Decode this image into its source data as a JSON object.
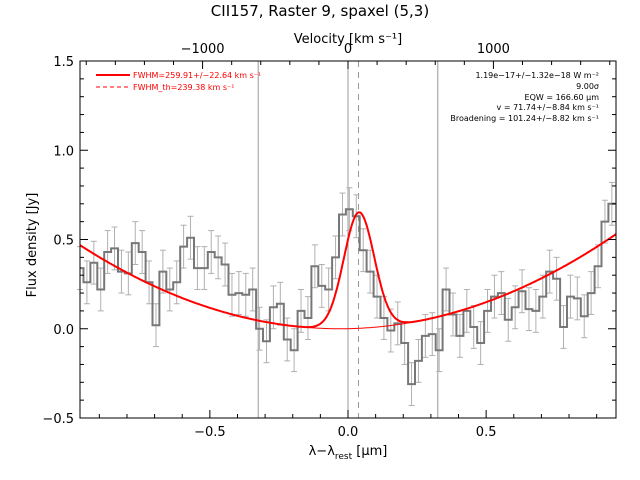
{
  "chart_data": {
    "type": "line",
    "title": "CII157, Raster 9, spaxel (5,3)",
    "xlabel": "λ−λ",
    "xlabel_subscript": "rest",
    "xlabel_unit": " [μm]",
    "ylabel": "Flux density [Jy]",
    "top_axis_label": "Velocity [km s⁻¹]",
    "xlim": [
      -0.97,
      0.97
    ],
    "ylim": [
      -0.5,
      1.5
    ],
    "grid": false,
    "x_ticks": [
      -0.5,
      0.0,
      0.5
    ],
    "x_tick_labels": [
      "−0.5",
      "0.0",
      "0.5"
    ],
    "y_ticks": [
      -0.5,
      0.0,
      0.5,
      1.0,
      1.5
    ],
    "y_tick_labels": [
      "−0.5",
      "0.0",
      "0.5",
      "1.0",
      "1.5"
    ],
    "top_ticks_kms": [
      -1000,
      0,
      1000
    ],
    "top_tick_labels": [
      "−1000",
      "0",
      "1000"
    ],
    "kms_per_micron": 1900,
    "vertical_lines": [
      -0.325,
      0.0,
      0.325
    ],
    "dashed_vertical_line": 0.038,
    "data_spectrum": {
      "x": [
        -0.97,
        -0.945,
        -0.92,
        -0.895,
        -0.87,
        -0.845,
        -0.82,
        -0.795,
        -0.77,
        -0.745,
        -0.72,
        -0.695,
        -0.67,
        -0.645,
        -0.62,
        -0.595,
        -0.57,
        -0.545,
        -0.52,
        -0.495,
        -0.47,
        -0.445,
        -0.42,
        -0.395,
        -0.37,
        -0.345,
        -0.32,
        -0.295,
        -0.27,
        -0.245,
        -0.22,
        -0.195,
        -0.17,
        -0.145,
        -0.12,
        -0.095,
        -0.07,
        -0.045,
        -0.02,
        0.005,
        0.03,
        0.055,
        0.08,
        0.105,
        0.13,
        0.155,
        0.18,
        0.205,
        0.23,
        0.255,
        0.28,
        0.305,
        0.33,
        0.355,
        0.38,
        0.405,
        0.43,
        0.455,
        0.48,
        0.505,
        0.53,
        0.555,
        0.58,
        0.605,
        0.63,
        0.655,
        0.68,
        0.705,
        0.73,
        0.755,
        0.78,
        0.805,
        0.83,
        0.855,
        0.88,
        0.905,
        0.93,
        0.955
      ],
      "y": [
        0.34,
        0.26,
        0.37,
        0.22,
        0.43,
        0.45,
        0.32,
        0.31,
        0.48,
        0.43,
        0.26,
        0.02,
        0.32,
        0.22,
        0.26,
        0.46,
        0.51,
        0.34,
        0.34,
        0.43,
        0.4,
        0.36,
        0.19,
        0.2,
        0.19,
        0.22,
        0.0,
        -0.07,
        0.12,
        0.14,
        -0.06,
        -0.12,
        0.1,
        0.06,
        0.35,
        0.24,
        0.22,
        0.4,
        0.64,
        0.67,
        0.63,
        0.44,
        0.32,
        0.18,
        0.06,
        -0.01,
        0.03,
        -0.08,
        -0.31,
        -0.18,
        -0.04,
        -0.03,
        -0.12,
        0.22,
        0.08,
        -0.04,
        0.1,
        0.01,
        -0.08,
        0.1,
        0.18,
        0.2,
        0.05,
        0.12,
        0.21,
        0.11,
        0.1,
        0.18,
        0.32,
        0.28,
        0.01,
        0.18,
        0.17,
        0.07,
        0.2,
        0.35,
        0.6,
        0.7
      ],
      "error": 0.12
    },
    "fit": {
      "baseline": {
        "center": -0.03,
        "a": 0.53
      },
      "gaussian": {
        "amplitude": 0.65,
        "center": 0.04,
        "sigma": 0.055
      }
    },
    "series": [
      {
        "name": "FWHM=259.91+/−22.64 km s⁻¹",
        "style": "solid",
        "color": "#ff0000"
      },
      {
        "name": "FWHM_th=239.38 km s⁻¹",
        "style": "dashed",
        "color": "#ff0000"
      }
    ],
    "legend_position": "top-left",
    "annotations": [
      "1.19e−17+/−1.32e−18 W m⁻²",
      "9.00σ",
      "EQW = 166.60 μm",
      "v = 71.74+/−8.84 km s⁻¹",
      "Broadening = 101.24+/−8.82 km s⁻¹"
    ],
    "colors": {
      "data": "#777777",
      "errorbar": "#b0b0b0",
      "fit": "#ff0000",
      "axes": "#000000",
      "vline": "#999999"
    }
  }
}
